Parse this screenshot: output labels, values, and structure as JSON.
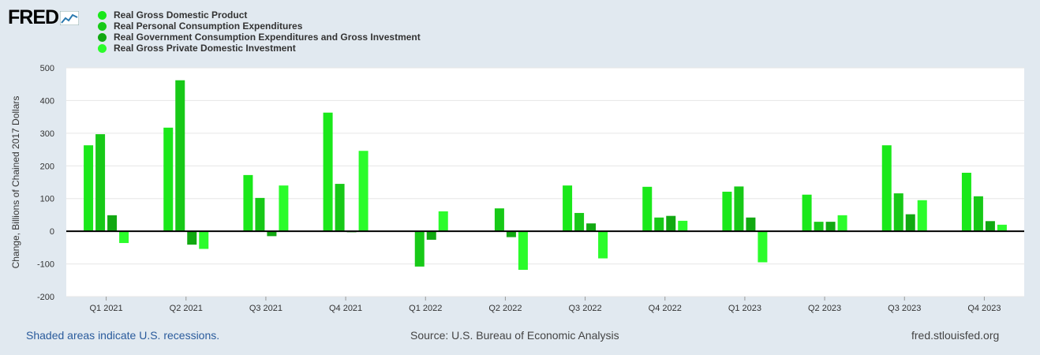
{
  "logo": {
    "text": "FRED",
    "icon": "fred-graph-icon"
  },
  "footer": {
    "recession_note": "Shaded areas indicate U.S. recessions.",
    "source": "Source: U.S. Bureau of Economic Analysis",
    "site": "fred.stlouisfed.org"
  },
  "chart_data": {
    "type": "bar",
    "title": "",
    "xlabel": "",
    "ylabel": "Change, Billions of Chained 2017 Dollars",
    "ylim": [
      -200,
      500
    ],
    "yticks": [
      -200,
      -100,
      0,
      100,
      200,
      300,
      400,
      500
    ],
    "yticklabels": [
      "-200",
      "-100",
      "0",
      "100",
      "200",
      "300",
      "400",
      "500"
    ],
    "grid": true,
    "legend_position": "top-left",
    "categories": [
      "Q1 2021",
      "Q2 2021",
      "Q3 2021",
      "Q4 2021",
      "Q1 2022",
      "Q2 2022",
      "Q3 2022",
      "Q4 2022",
      "Q1 2023",
      "Q2 2023",
      "Q3 2023",
      "Q4 2023"
    ],
    "series": [
      {
        "name": "Real Gross Domestic Product",
        "color": "#1ae81a",
        "values": [
          263,
          317,
          172,
          363,
          -1,
          -1,
          140,
          136,
          121,
          112,
          263,
          179
        ]
      },
      {
        "name": "Real Personal Consumption Expenditures",
        "color": "#17c917",
        "values": [
          297,
          462,
          102,
          145,
          -108,
          70,
          56,
          42,
          137,
          29,
          116,
          107
        ]
      },
      {
        "name": "Real Government Consumption Expenditures and Gross Investment",
        "color": "#11a811",
        "values": [
          49,
          -41,
          -15,
          -3,
          -26,
          -18,
          24,
          47,
          42,
          29,
          52,
          31
        ]
      },
      {
        "name": "Real Gross Private Domestic Investment",
        "color": "#2bfc2b",
        "values": [
          -36,
          -54,
          140,
          246,
          61,
          -118,
          -83,
          32,
          -95,
          49,
          95,
          20
        ]
      }
    ],
    "axis_ranges": {
      "x": [
        "Q1 2021",
        "Q4 2023"
      ],
      "y": [
        -200,
        500
      ]
    }
  }
}
